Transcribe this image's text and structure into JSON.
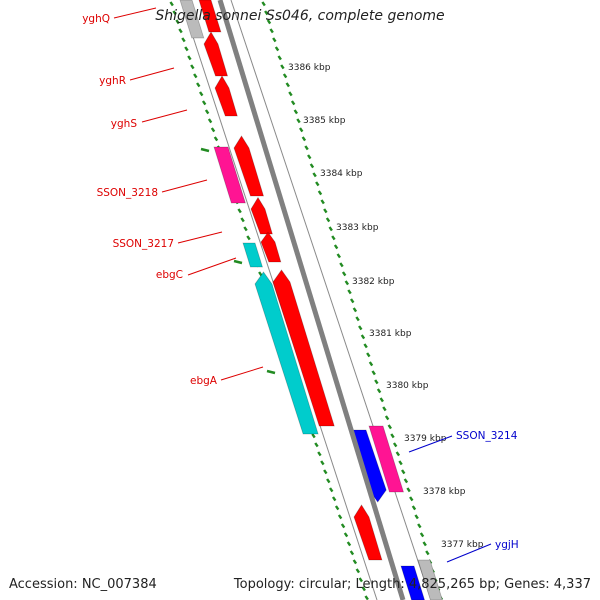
{
  "title": "Shigella sonnei Ss046, complete genome",
  "footer": {
    "accession": "Accession: NC_007384",
    "summary": "Topology: circular; Length: 4,825,265 bp; Genes: 4,337"
  },
  "colors": {
    "forward_gene": "#ff0000",
    "reverse_gene": "#0000ff",
    "magenta_gene": "#ff1493",
    "cyan_gene": "#00cccc",
    "grey_gene": "#bbbbbb",
    "backbone": "#808080",
    "tick": "#228b22",
    "label_red": "#dd0000",
    "label_blue": "#0000cc"
  },
  "scale_labels": [
    "3386 kbp",
    "3385 kbp",
    "3384 kbp",
    "3383 kbp",
    "3382 kbp",
    "3381 kbp",
    "3380 kbp",
    "3379 kbp",
    "3378 kbp",
    "3377 kbp"
  ],
  "gene_labels": [
    "yghQ",
    "yghR",
    "yghS",
    "SSON_3218",
    "SSON_3217",
    "ebgC",
    "ebgA",
    "SSON_3214",
    "ygjH"
  ]
}
